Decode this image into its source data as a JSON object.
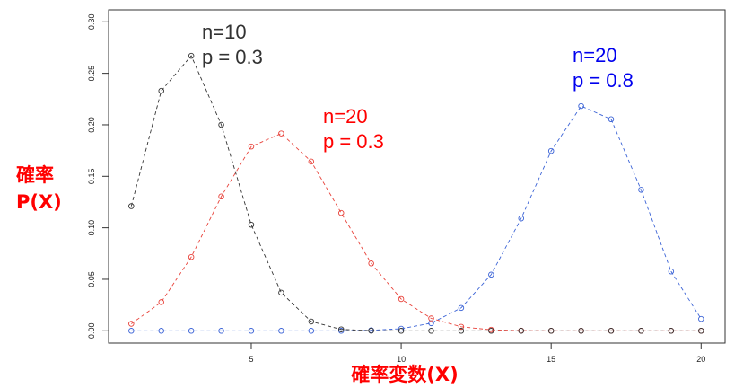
{
  "chart_data": {
    "type": "line",
    "title": "",
    "xlabel": "確率変数(X)",
    "ylabel": [
      "確率",
      "P(X)"
    ],
    "xlim": [
      0.2,
      21.0
    ],
    "ylim": [
      0,
      0.3
    ],
    "xticks": [
      5,
      10,
      15,
      20
    ],
    "yticks": [
      "0.00",
      "0.05",
      "0.10",
      "0.15",
      "0.20",
      "0.25",
      "0.30"
    ],
    "grid": false,
    "x": [
      1,
      2,
      3,
      4,
      5,
      6,
      7,
      8,
      9,
      10,
      11,
      12,
      13,
      14,
      15,
      16,
      17,
      18,
      19,
      20
    ],
    "series": [
      {
        "name": "n=10, p=0.3",
        "color": "#333333",
        "label": [
          "n=10",
          "p = 0.3"
        ],
        "values": [
          0.121,
          0.233,
          0.267,
          0.2,
          0.103,
          0.037,
          0.009,
          0.0014,
          0.0001,
          0.0,
          0,
          0,
          0,
          0,
          0,
          0,
          0,
          0,
          0,
          0
        ]
      },
      {
        "name": "n=20, p=0.3",
        "color": "#e8423a",
        "label": [
          "n=20",
          "p = 0.3"
        ],
        "label_color": "#ff0000",
        "values": [
          0.0068,
          0.0278,
          0.0716,
          0.1304,
          0.1789,
          0.1916,
          0.1643,
          0.1144,
          0.0654,
          0.0308,
          0.012,
          0.0039,
          0.001,
          0.0002,
          0,
          0,
          0,
          0,
          0,
          0
        ]
      },
      {
        "name": "n=20, p=0.8",
        "color": "#3b63d6",
        "label": [
          "n=20",
          "p = 0.8"
        ],
        "label_color": "#0000ee",
        "values": [
          0,
          0,
          0,
          0,
          0,
          0,
          0,
          0,
          0.0005,
          0.002,
          0.0074,
          0.0222,
          0.0545,
          0.1091,
          0.1746,
          0.2182,
          0.2054,
          0.1369,
          0.0576,
          0.0115
        ]
      }
    ]
  }
}
